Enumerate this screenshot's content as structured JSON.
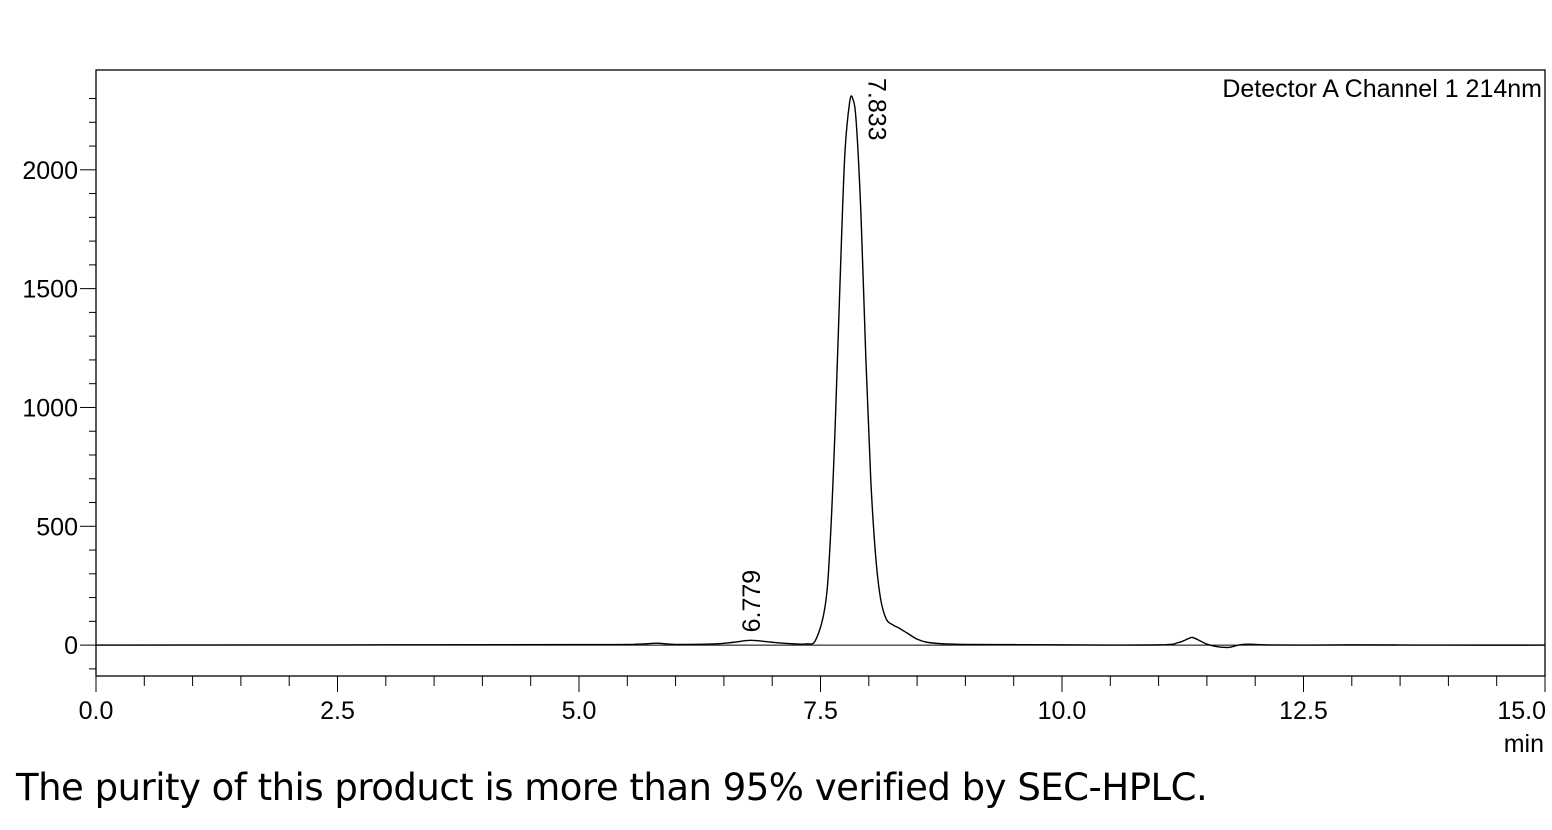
{
  "chart_data": {
    "type": "line",
    "legend_text": "Detector A Channel 1 214nm",
    "legend_position": "top-right",
    "xlabel": "min",
    "ylabel": "",
    "xlim": [
      0.0,
      15.0
    ],
    "ylim": [
      -130,
      2420
    ],
    "x_ticks": [
      "0.0",
      "2.5",
      "5.0",
      "7.5",
      "10.0",
      "12.5",
      "15.0"
    ],
    "x_tick_values": [
      0,
      2.5,
      5.0,
      7.5,
      10.0,
      12.5,
      15.0
    ],
    "y_ticks": [
      "0",
      "500",
      "1000",
      "1500",
      "2000"
    ],
    "y_tick_values": [
      0,
      500,
      1000,
      1500,
      2000
    ],
    "grid": false,
    "baseline": 0,
    "peak_labels": [
      {
        "text": "6.779",
        "x": 6.779,
        "y": 20
      },
      {
        "text": "7.833",
        "x": 7.833,
        "y": 2300
      }
    ],
    "series": [
      {
        "x": [
          0.0,
          5.0,
          5.6,
          5.8,
          6.0,
          6.4,
          6.6,
          6.779,
          7.0,
          7.2,
          7.35,
          7.45,
          7.55,
          7.6,
          7.65,
          7.7,
          7.75,
          7.8,
          7.833,
          7.87,
          7.92,
          7.97,
          8.02,
          8.07,
          8.12,
          8.18,
          8.25,
          8.32,
          8.4,
          8.5,
          8.6,
          8.75,
          9.0,
          9.5,
          10.0,
          11.0,
          11.2,
          11.3,
          11.35,
          11.42,
          11.5,
          11.6,
          11.7,
          11.75,
          11.85,
          11.95,
          12.1,
          12.5,
          13.0,
          14.0,
          15.0
        ],
        "y": [
          0,
          2,
          4,
          8,
          3,
          5,
          12,
          20,
          12,
          6,
          5,
          22,
          170,
          430,
          900,
          1500,
          2050,
          2280,
          2300,
          2200,
          1800,
          1200,
          700,
          380,
          200,
          110,
          85,
          70,
          50,
          25,
          12,
          6,
          3,
          2,
          1,
          1,
          10,
          26,
          32,
          20,
          4,
          -6,
          -10,
          -8,
          2,
          4,
          1,
          0,
          1,
          0,
          0
        ]
      }
    ]
  },
  "caption": "The purity of this product is more than 95% verified by SEC-HPLC."
}
